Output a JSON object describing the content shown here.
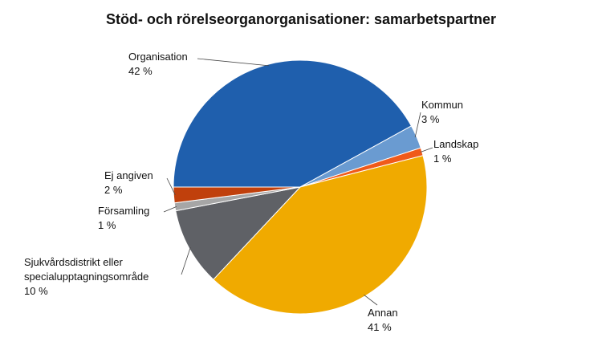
{
  "chart_data": {
    "type": "pie",
    "title": "Stöd- och rörelseorganorganisationer: samarbetspartner",
    "categories": [
      "Organisation",
      "Kommun",
      "Landskap",
      "Annan",
      "Sjukvårdsdistrikt eller specialupptagningsområde",
      "Församling",
      "Ej angiven"
    ],
    "values": [
      42,
      3,
      1,
      41,
      10,
      1,
      2
    ],
    "value_labels": [
      "42 %",
      "3 %",
      "1 %",
      "41 %",
      "10 %",
      "1 %",
      "2 %"
    ],
    "colors": [
      "#1f5fad",
      "#6a9bd1",
      "#f05a1a",
      "#f0aa00",
      "#5f6166",
      "#a6a6a6",
      "#c0400c"
    ]
  }
}
